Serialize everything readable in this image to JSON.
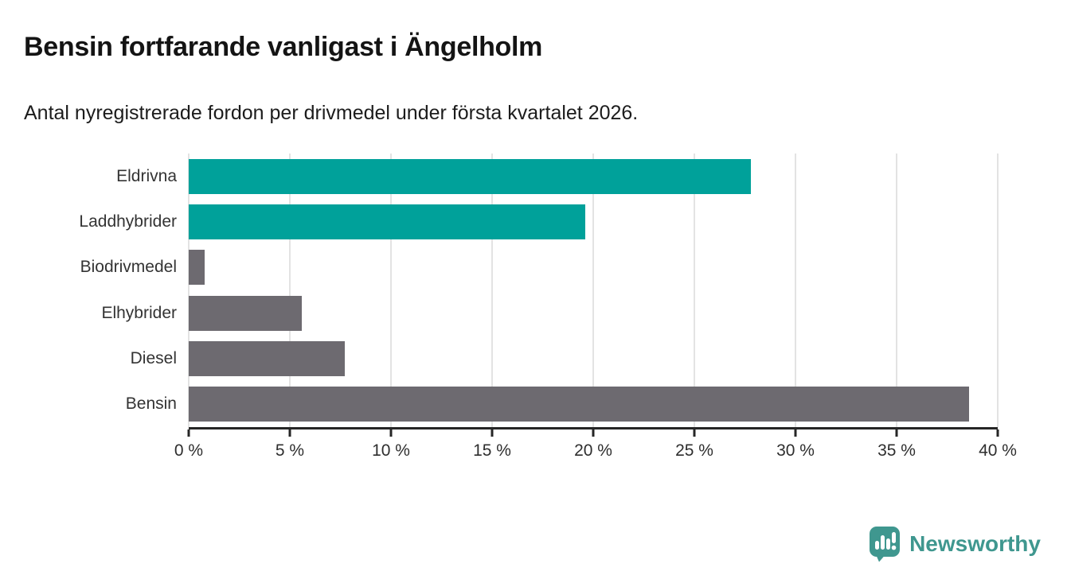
{
  "title": "Bensin fortfarande vanligast i Ängelholm",
  "subtitle": "Antal nyregistrerade fordon per drivmedel under första kvartalet 2026.",
  "chart_data": {
    "type": "bar",
    "orientation": "horizontal",
    "title": "Bensin fortfarande vanligast i Ängelholm",
    "subtitle": "Antal nyregistrerade fordon per drivmedel under första kvartalet 2026.",
    "categories": [
      "Eldrivna",
      "Laddhybrider",
      "Biodrivmedel",
      "Elhybrider",
      "Diesel",
      "Bensin"
    ],
    "values": [
      27.8,
      19.6,
      0.8,
      5.6,
      7.7,
      38.6
    ],
    "unit": "%",
    "bar_colors": [
      "#00a19a",
      "#00a19a",
      "#6d6a70",
      "#6d6a70",
      "#6d6a70",
      "#6d6a70"
    ],
    "xlim": [
      0,
      40
    ],
    "x_tick_values": [
      0,
      5,
      10,
      15,
      20,
      25,
      30,
      35,
      40
    ],
    "x_tick_labels": [
      "0 %",
      "5 %",
      "10 %",
      "15 %",
      "20 %",
      "25 %",
      "30 %",
      "35 %",
      "40 %"
    ],
    "grid": true,
    "gridline_color": "#e3e3e3",
    "axis_color": "#262626",
    "legend": "none"
  },
  "footer": {
    "brand": "Newsworthy",
    "brand_color": "#3f978f",
    "logo_icon": "newsworthy-speech-bubble-bar-chart-icon"
  },
  "colors": {
    "highlight_teal": "#00a19a",
    "neutral_gray": "#6d6a70",
    "title_text": "#141414",
    "label_text": "#333333",
    "background": "#ffffff"
  }
}
